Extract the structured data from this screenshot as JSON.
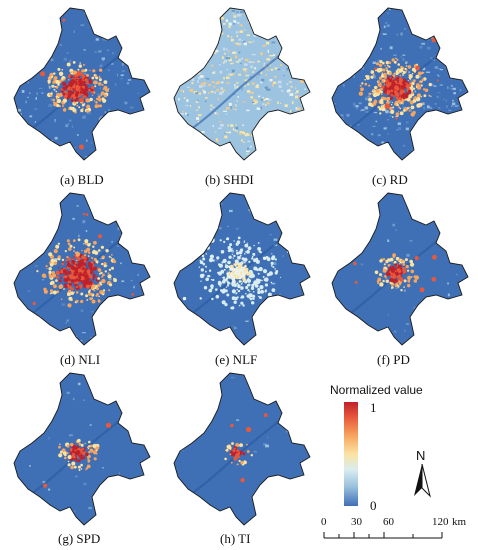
{
  "panels": [
    {
      "caption": "(a) BLD",
      "style": "bld"
    },
    {
      "caption": "(b) SHDI",
      "style": "shdi"
    },
    {
      "caption": "(c) RD",
      "style": "rd"
    },
    {
      "caption": "(d) NLI",
      "style": "nli"
    },
    {
      "caption": "(e) NLF",
      "style": "nlf"
    },
    {
      "caption": "(f) PD",
      "style": "pd"
    },
    {
      "caption": "(g) SPD",
      "style": "spd"
    },
    {
      "caption": "(h) TI",
      "style": "ti"
    }
  ],
  "legend": {
    "title": "Normalized value",
    "max_label": "1",
    "min_label": "0",
    "colors": [
      "#c0202a",
      "#f6a45e",
      "#fbe3a2",
      "#97bfdc",
      "#3f6fb5"
    ]
  },
  "north_arrow": {
    "label": "N"
  },
  "scale_bar": {
    "ticks": [
      "0",
      "30",
      "60",
      "120"
    ],
    "unit": "km"
  }
}
